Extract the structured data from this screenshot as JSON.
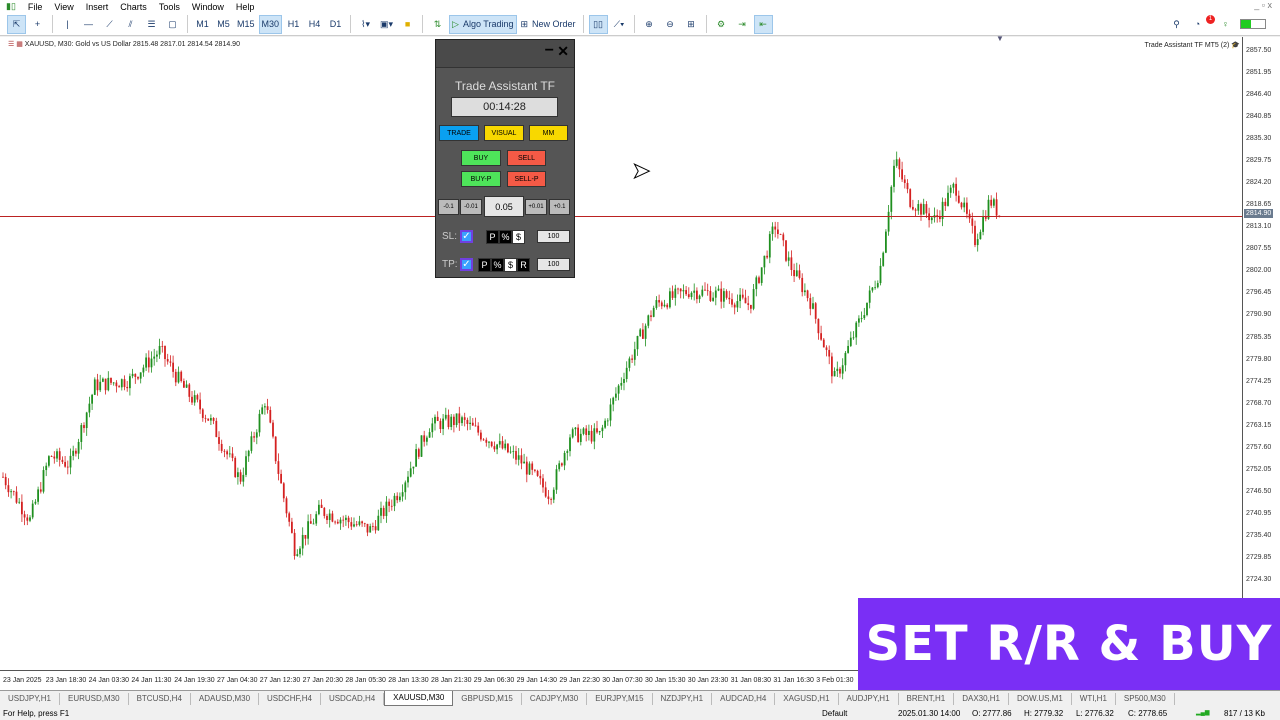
{
  "menu": [
    "File",
    "View",
    "Insert",
    "Charts",
    "Tools",
    "Window",
    "Help"
  ],
  "toolbar": {
    "timeframes": [
      "M1",
      "M5",
      "M15",
      "M30",
      "H1",
      "H4",
      "D1"
    ],
    "active_timeframe": "M30",
    "algo_trading": "Algo Trading",
    "new_order": "New Order",
    "notification_count": "1"
  },
  "chart": {
    "symbol_line": "XAUUSD, M30:  Gold vs US Dollar  2815.48 2817.01 2814.54 2814.90",
    "ea_label": "Trade Assistant TF MT5 (2)",
    "current_price": "2814.90",
    "price_labels": [
      "2857.50",
      "2851.95",
      "2846.40",
      "2840.85",
      "2835.30",
      "2829.75",
      "2824.20",
      "2818.65",
      "2813.10",
      "2807.55",
      "2802.00",
      "2796.45",
      "2790.90",
      "2785.35",
      "2779.80",
      "2774.25",
      "2768.70",
      "2763.15",
      "2757.60",
      "2752.05",
      "2746.50",
      "2740.95",
      "2735.40",
      "2729.85",
      "2724.30"
    ],
    "time_labels": [
      "23 Jan 2025",
      "23 Jan 18:30",
      "24 Jan 03:30",
      "24 Jan 11:30",
      "24 Jan 19:30",
      "27 Jan 04:30",
      "27 Jan 12:30",
      "27 Jan 20:30",
      "28 Jan 05:30",
      "28 Jan 13:30",
      "28 Jan 21:30",
      "29 Jan 06:30",
      "29 Jan 14:30",
      "29 Jan 22:30",
      "30 Jan 07:30",
      "30 Jan 15:30",
      "30 Jan 23:30",
      "31 Jan 08:30",
      "31 Jan 16:30",
      "3 Feb 01:30"
    ],
    "bull_color": "#1f8f1f",
    "bear_color": "#d42020"
  },
  "chart_data": {
    "type": "candlestick",
    "price_path": [
      2748.2,
      2738.1,
      2754.5,
      2752.0,
      2772.1,
      2773.4,
      2780.9,
      2770.9,
      2763.3,
      2748.2,
      2768.3,
      2748.2,
      2730.6,
      2740.6,
      2738.1,
      2735.6,
      2745.7,
      2762.1,
      2763.3,
      2758.3,
      2753.2,
      2744.4,
      2759.5,
      2759.5,
      2775.9,
      2792.3,
      2796.0,
      2794.8,
      2792.3,
      2812.4,
      2802.3,
      2793.5,
      2773.4,
      2788.5,
      2801.1,
      2828.8,
      2818.7,
      2813.7,
      2822.5,
      2808.6,
      2818.7,
      2814.9
    ],
    "yrange": [
      2724.3,
      2857.5
    ]
  },
  "panel": {
    "title": "Trade Assistant TF",
    "timer": "00:14:28",
    "tabs": [
      "TRADE",
      "VISUAL",
      "MM"
    ],
    "buy": "BUY",
    "sell": "SELL",
    "buy_p": "BUY-P",
    "sell_p": "SELL-P",
    "lot_steps": [
      "-0.1",
      "-0.01",
      "+0.01",
      "+0.1"
    ],
    "lot": "0.05",
    "sl_label": "SL:",
    "tp_label": "TP:",
    "sl_modes": [
      "P",
      "%",
      "$"
    ],
    "tp_modes": [
      "P",
      "%",
      "$",
      "R"
    ],
    "sl_value": "100",
    "tp_value": "100",
    "minimize": "−",
    "close": "✕"
  },
  "banner": "SET R/R & BUY",
  "tabs": [
    "USDJPY,H1",
    "EURUSD,M30",
    "BTCUSD,H4",
    "ADAUSD,M30",
    "USDCHF,H4",
    "USDCAD,H4",
    "XAUUSD,M30",
    "GBPUSD,M15",
    "CADJPY,M30",
    "EURJPY,M15",
    "NZDJPY,H1",
    "AUDCAD,H4",
    "XAGUSD,H1",
    "AUDJPY,H1",
    "BRENT,H1",
    "DAX30,H1",
    "DOW.US,M1",
    "WTI,H1",
    "SP500,M30"
  ],
  "active_tab": "XAUUSD,M30",
  "status": {
    "help": "For Help, press F1",
    "profile": "Default",
    "time": "2025.01.30 14:00",
    "open": "O: 2777.86",
    "high": "H: 2779.32",
    "low": "L: 2776.32",
    "close": "C: 2778.65",
    "traffic": "817 / 13 Kb"
  }
}
